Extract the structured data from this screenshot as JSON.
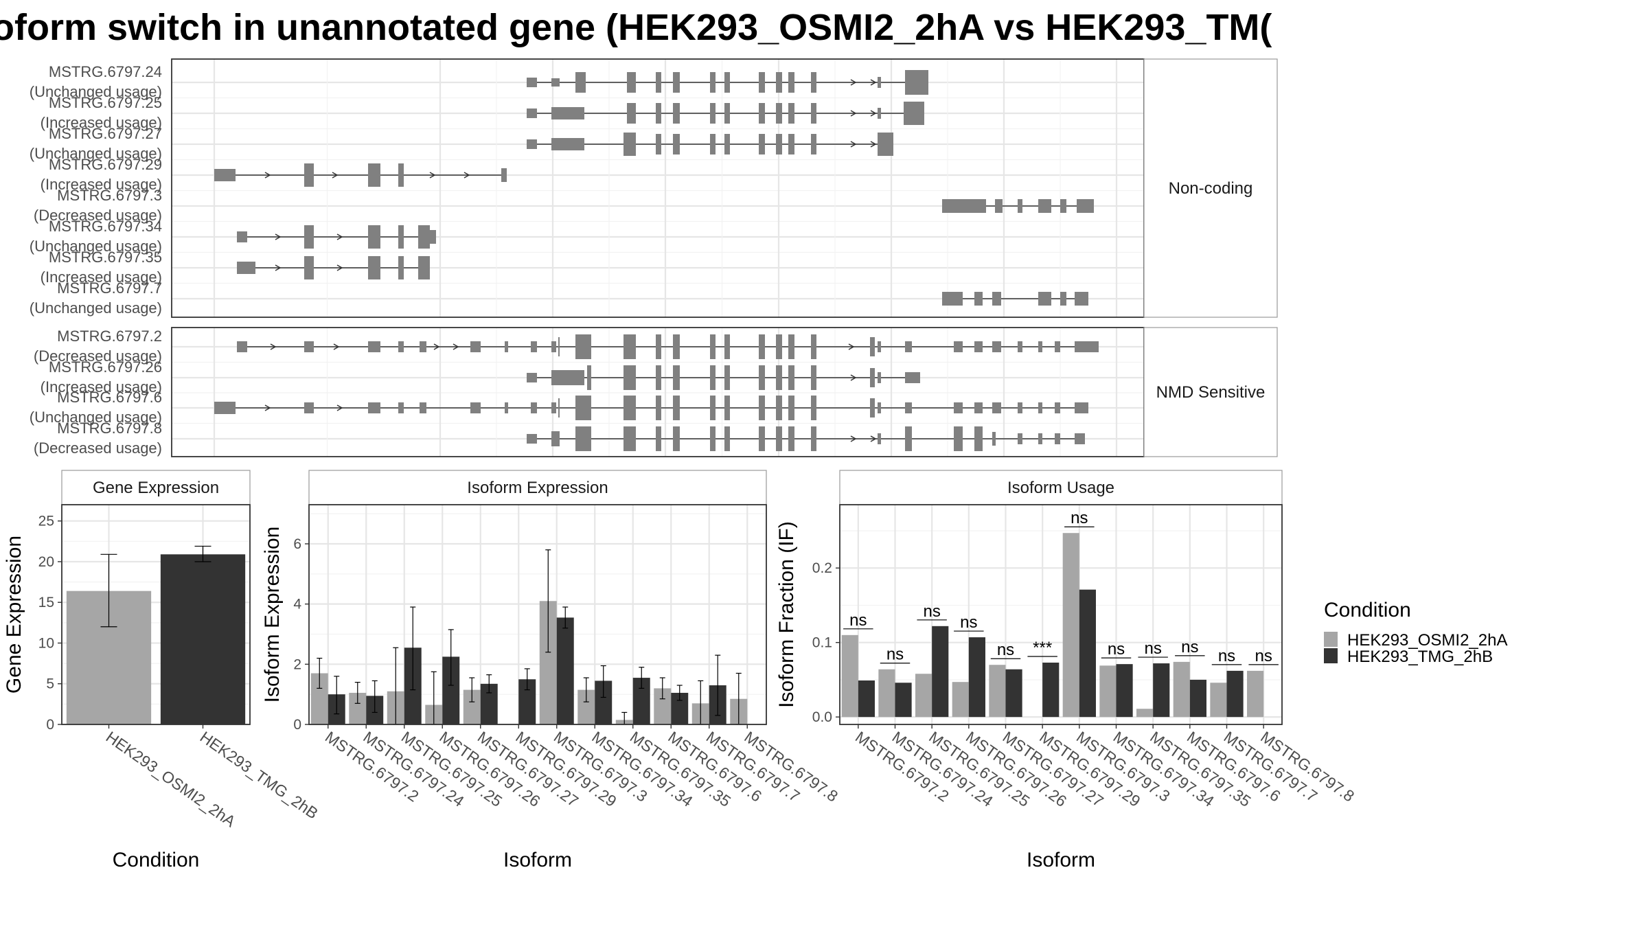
{
  "title": "oform switch in unannotated gene (HEK293_OSMI2_2hA vs HEK293_TM(",
  "structure_panels": [
    {
      "facet": "Non-coding",
      "isoforms": [
        {
          "id": "MSTRG.6797.24",
          "usage": "(Unchanged usage)"
        },
        {
          "id": "MSTRG.6797.25",
          "usage": "(Increased usage)"
        },
        {
          "id": "MSTRG.6797.27",
          "usage": "(Unchanged usage)"
        },
        {
          "id": "MSTRG.6797.29",
          "usage": "(Increased usage)"
        },
        {
          "id": "MSTRG.6797.3",
          "usage": "(Decreased usage)"
        },
        {
          "id": "MSTRG.6797.34",
          "usage": "(Unchanged usage)"
        },
        {
          "id": "MSTRG.6797.35",
          "usage": "(Increased usage)"
        },
        {
          "id": "MSTRG.6797.7",
          "usage": "(Unchanged usage)"
        }
      ]
    },
    {
      "facet": "NMD Sensitive",
      "isoforms": [
        {
          "id": "MSTRG.6797.2",
          "usage": "(Decreased usage)"
        },
        {
          "id": "MSTRG.6797.26",
          "usage": "(Increased usage)"
        },
        {
          "id": "MSTRG.6797.6",
          "usage": "(Unchanged usage)"
        },
        {
          "id": "MSTRG.6797.8",
          "usage": "(Decreased usage)"
        }
      ]
    }
  ],
  "legend": {
    "title": "Condition",
    "items": [
      {
        "label": "HEK293_OSMI2_2hA",
        "color": "#a6a6a6"
      },
      {
        "label": "HEK293_TMG_2hB",
        "color": "#333333"
      }
    ]
  },
  "chart_data": [
    {
      "type": "bar",
      "title": "Gene Expression",
      "xlabel": "Condition",
      "ylabel": "Gene Expression",
      "ylim": [
        0,
        27
      ],
      "yticks": [
        0,
        5,
        10,
        15,
        20,
        25
      ],
      "categories": [
        "HEK293_OSMI2_2hA",
        "HEK293_TMG_2hB"
      ],
      "values": [
        16.4,
        20.9
      ],
      "error_low": [
        12.0,
        20.0
      ],
      "error_high": [
        20.9,
        21.9
      ]
    },
    {
      "type": "bar",
      "title": "Isoform Expression",
      "xlabel": "Isoform",
      "ylabel": "Isoform Expression",
      "ylim": [
        0,
        7.3
      ],
      "yticks": [
        0,
        2,
        4,
        6
      ],
      "categories": [
        "MSTRG.6797.2",
        "MSTRG.6797.24",
        "MSTRG.6797.25",
        "MSTRG.6797.26",
        "MSTRG.6797.27",
        "MSTRG.6797.29",
        "MSTRG.6797.3",
        "MSTRG.6797.34",
        "MSTRG.6797.35",
        "MSTRG.6797.6",
        "MSTRG.6797.7",
        "MSTRG.6797.8"
      ],
      "series": [
        {
          "name": "HEK293_OSMI2_2hA",
          "values": [
            1.7,
            1.05,
            1.1,
            0.65,
            1.15,
            0.0,
            4.1,
            1.15,
            0.15,
            1.2,
            0.7,
            0.85
          ],
          "error_low": [
            1.2,
            0.7,
            0.0,
            0.0,
            0.75,
            0.0,
            2.4,
            0.75,
            0.0,
            0.85,
            0.0,
            0.0
          ],
          "error_high": [
            2.2,
            1.4,
            2.55,
            1.75,
            1.55,
            0.0,
            5.8,
            1.55,
            0.4,
            1.55,
            1.45,
            1.7
          ]
        },
        {
          "name": "HEK293_TMG_2hB",
          "values": [
            1.0,
            0.95,
            2.55,
            2.25,
            1.35,
            1.5,
            3.55,
            1.45,
            1.55,
            1.05,
            1.3,
            0.0
          ],
          "error_low": [
            0.35,
            0.4,
            1.15,
            1.3,
            1.05,
            1.15,
            3.2,
            0.9,
            1.2,
            0.8,
            0.3,
            0.0
          ],
          "error_high": [
            1.6,
            1.45,
            3.9,
            3.15,
            1.65,
            1.85,
            3.9,
            1.95,
            1.9,
            1.3,
            2.3,
            0.0
          ]
        }
      ]
    },
    {
      "type": "bar",
      "title": "Isoform Usage",
      "xlabel": "Isoform",
      "ylabel": "Isoform Fraction (IF)",
      "ylim": [
        -0.01,
        0.285
      ],
      "yticks": [
        0.0,
        0.1,
        0.2
      ],
      "ytick_labels": [
        "0.0",
        "0.1",
        "0.2"
      ],
      "categories": [
        "MSTRG.6797.2",
        "MSTRG.6797.24",
        "MSTRG.6797.25",
        "MSTRG.6797.26",
        "MSTRG.6797.27",
        "MSTRG.6797.29",
        "MSTRG.6797.3",
        "MSTRG.6797.34",
        "MSTRG.6797.35",
        "MSTRG.6797.6",
        "MSTRG.6797.7",
        "MSTRG.6797.8"
      ],
      "series": [
        {
          "name": "HEK293_OSMI2_2hA",
          "values": [
            0.11,
            0.064,
            0.058,
            0.047,
            0.07,
            0.0,
            0.247,
            0.069,
            0.011,
            0.074,
            0.046,
            0.062
          ]
        },
        {
          "name": "HEK293_TMG_2hB",
          "values": [
            0.049,
            0.046,
            0.122,
            0.107,
            0.064,
            0.073,
            0.171,
            0.071,
            0.072,
            0.05,
            0.062,
            0.0
          ]
        }
      ],
      "significance": [
        "ns",
        "ns",
        "ns",
        "ns",
        "ns",
        "***",
        "ns",
        "ns",
        "ns",
        "ns",
        "ns",
        "ns"
      ]
    }
  ]
}
